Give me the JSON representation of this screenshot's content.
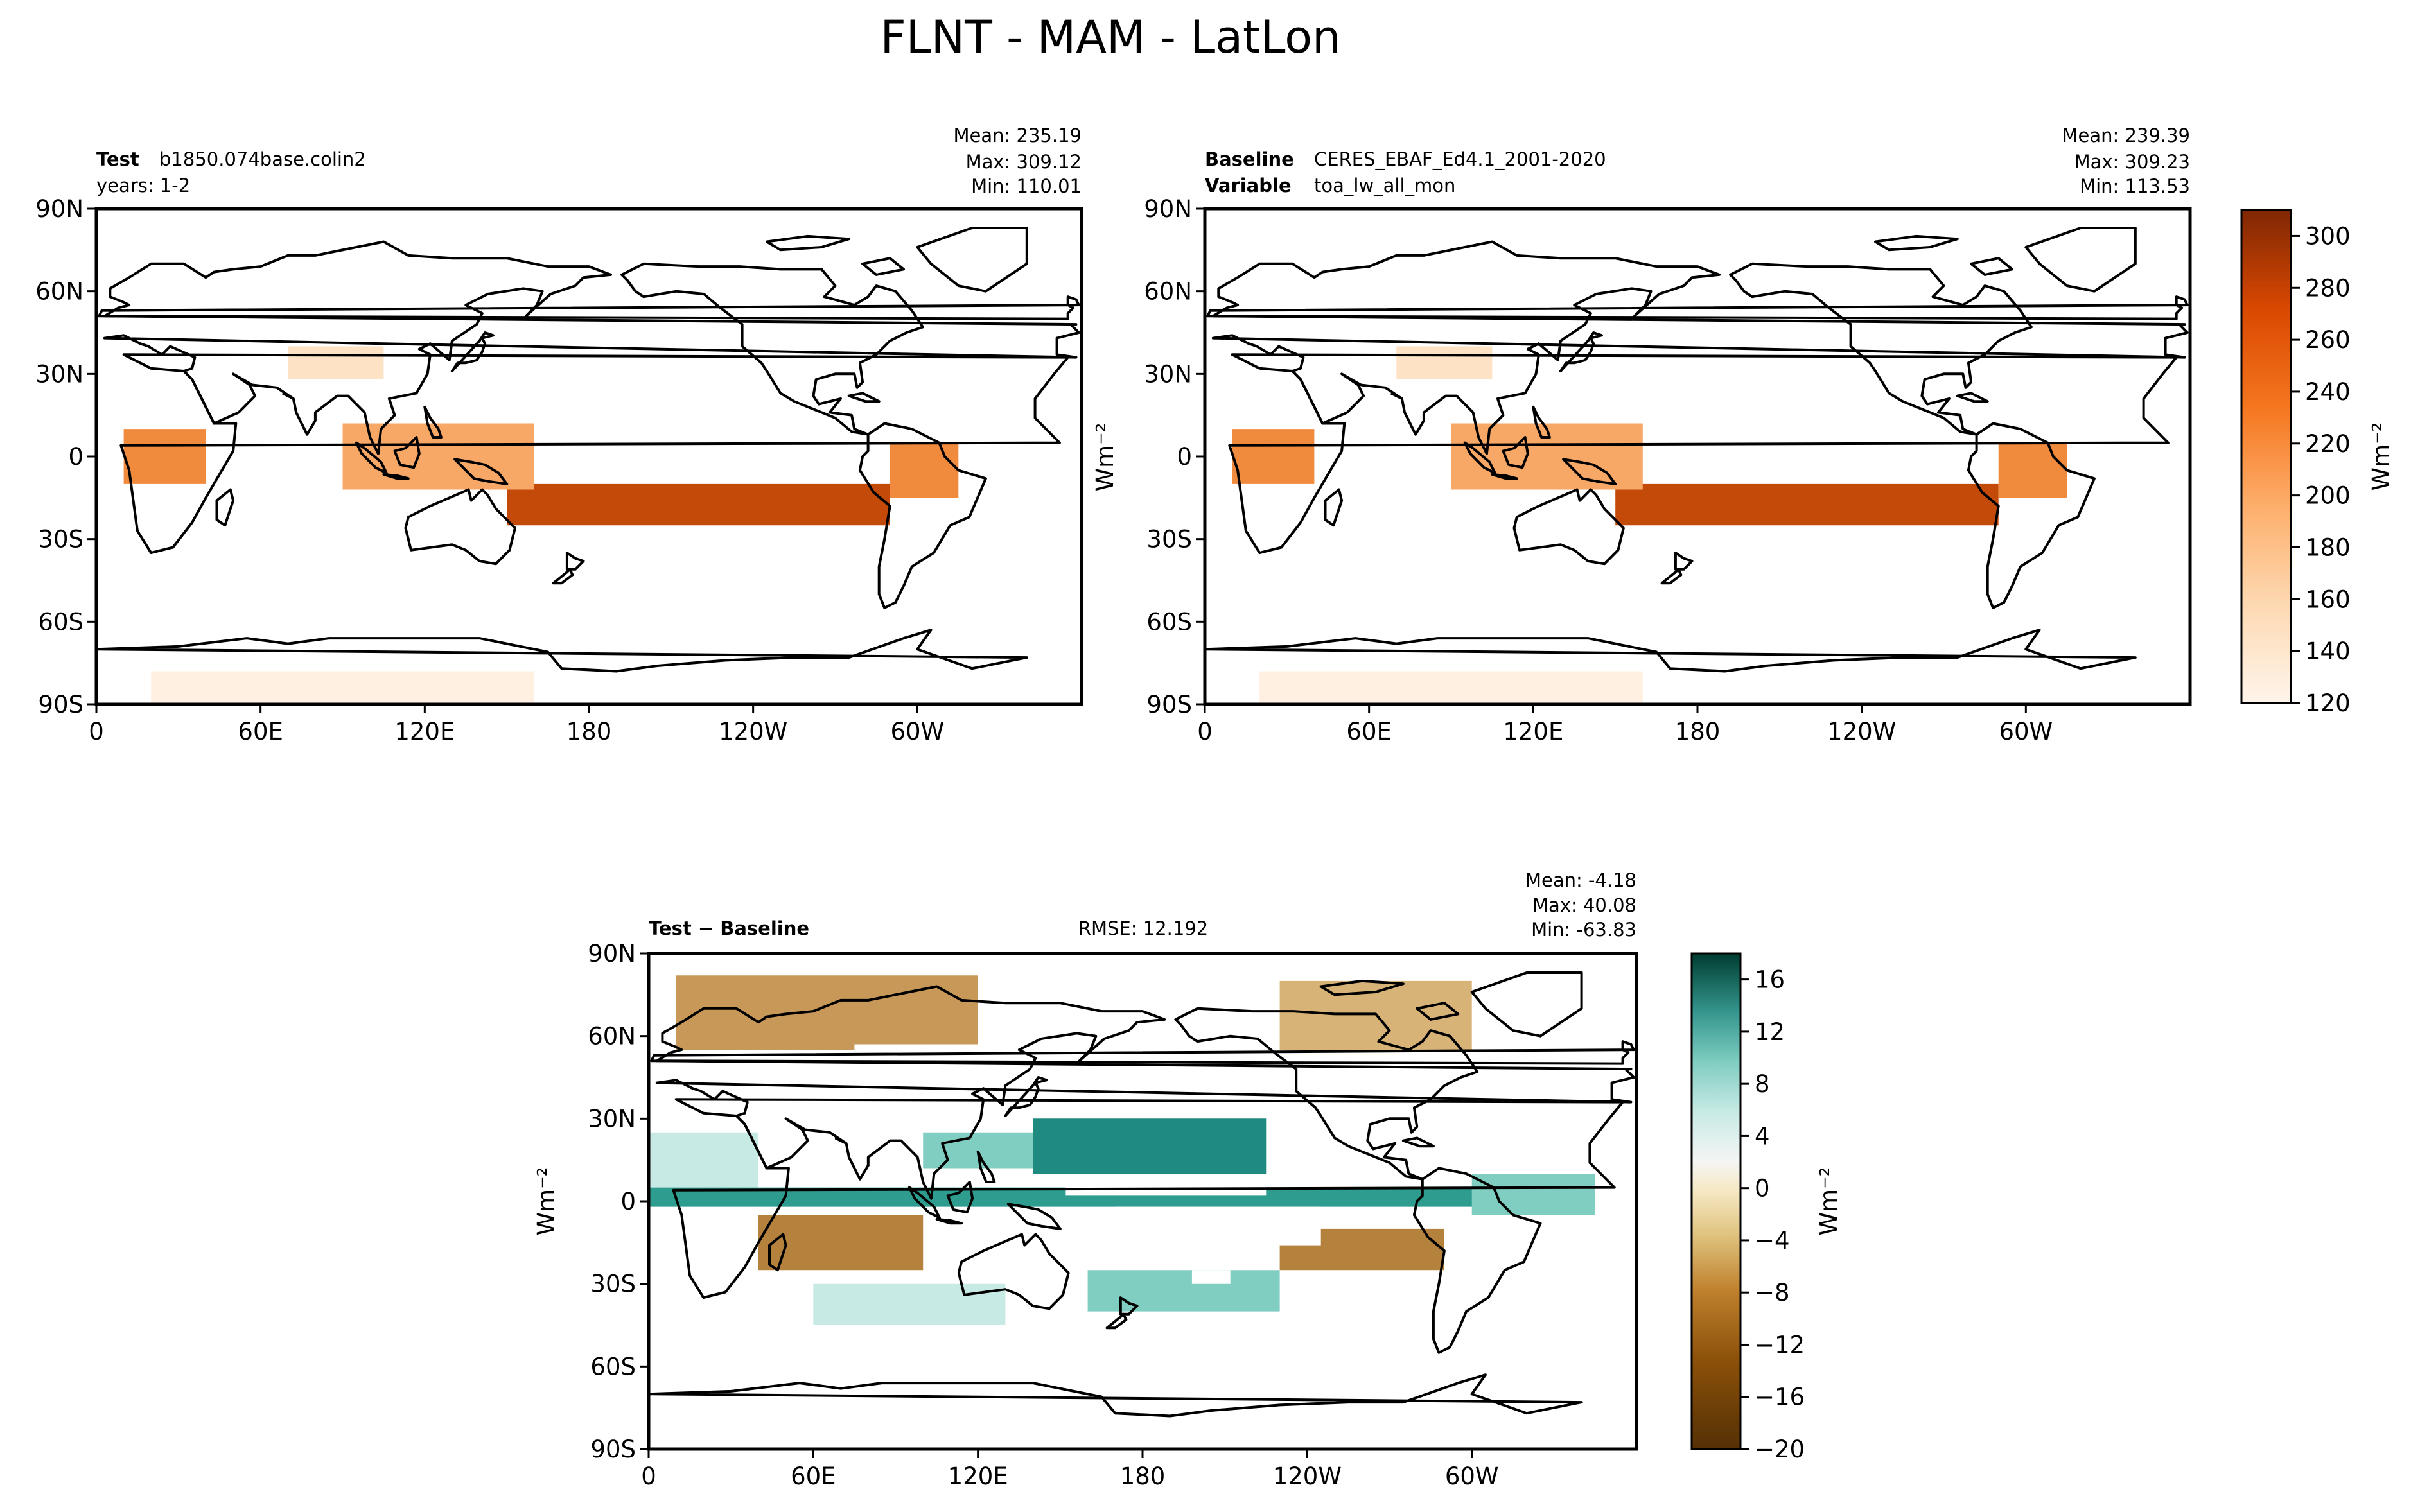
{
  "figure": {
    "title": "FLNT - MAM - LatLon"
  },
  "chart_data": [
    {
      "type": "heatmap",
      "panel": "test",
      "header": {
        "label_bold": "Test",
        "label_value": "b1850.074base.colin2",
        "line2": "years: 1-2"
      },
      "stats": {
        "mean": "Mean: 235.19",
        "max": "Max: 309.12",
        "min": "Min: 110.01"
      },
      "field": "FLNT",
      "units": "Wm⁻²",
      "x_ticks": [
        "0",
        "60E",
        "120E",
        "180",
        "120W",
        "60W"
      ],
      "y_ticks": [
        "90N",
        "60N",
        "30N",
        "0",
        "30S",
        "60S",
        "90S"
      ],
      "value_range": [
        110.01,
        309.12
      ],
      "mean": 235.19,
      "colormap": "Oranges"
    },
    {
      "type": "heatmap",
      "panel": "baseline",
      "header": {
        "label_bold": "Baseline",
        "label_value": "CERES_EBAF_Ed4.1_2001-2020",
        "line2_bold": "Variable",
        "line2_value": "toa_lw_all_mon"
      },
      "stats": {
        "mean": "Mean: 239.39",
        "max": "Max: 309.23",
        "min": "Min: 113.53"
      },
      "field": "toa_lw_all_mon",
      "units": "Wm⁻²",
      "x_ticks": [
        "0",
        "60E",
        "120E",
        "180",
        "120W",
        "60W"
      ],
      "y_ticks": [
        "90N",
        "60N",
        "30N",
        "0",
        "30S",
        "60S",
        "90S"
      ],
      "value_range": [
        113.53,
        309.23
      ],
      "mean": 239.39,
      "colormap": "Oranges",
      "colorbar": {
        "ticks": [
          "120",
          "140",
          "160",
          "180",
          "200",
          "220",
          "240",
          "260",
          "280",
          "300"
        ],
        "range": [
          120,
          310
        ],
        "label": "Wm⁻²"
      }
    },
    {
      "type": "heatmap",
      "panel": "difference",
      "header": {
        "label": "Test − Baseline",
        "rmse": "RMSE: 12.192"
      },
      "stats": {
        "mean": "Mean: -4.18",
        "max": "Max: 40.08",
        "min": "Min: -63.83"
      },
      "units": "Wm⁻²",
      "x_ticks": [
        "0",
        "60E",
        "120E",
        "180",
        "120W",
        "60W"
      ],
      "y_ticks": [
        "90N",
        "60N",
        "30N",
        "0",
        "30S",
        "60S",
        "90S"
      ],
      "value_range": [
        -63.83,
        40.08
      ],
      "mean": -4.18,
      "rmse": 12.192,
      "colormap": "BrBG",
      "colorbar": {
        "ticks": [
          "16",
          "12",
          "8",
          "4",
          "0",
          "−4",
          "−8",
          "−12",
          "−16",
          "−20"
        ],
        "range": [
          -20,
          18
        ],
        "label": "Wm⁻²"
      }
    }
  ],
  "colors": {
    "orange_scale": [
      "#fff5eb",
      "#fee6ce",
      "#fdd0a2",
      "#fdae6b",
      "#fd8d3c",
      "#f16913",
      "#d94801",
      "#a63603",
      "#7f2704"
    ],
    "diff_scale": [
      "#543005",
      "#8c510a",
      "#bf812d",
      "#dfc27d",
      "#f6e8c3",
      "#f5f5f5",
      "#c7eae5",
      "#80cdc1",
      "#35978f",
      "#01665e",
      "#003c30"
    ]
  }
}
